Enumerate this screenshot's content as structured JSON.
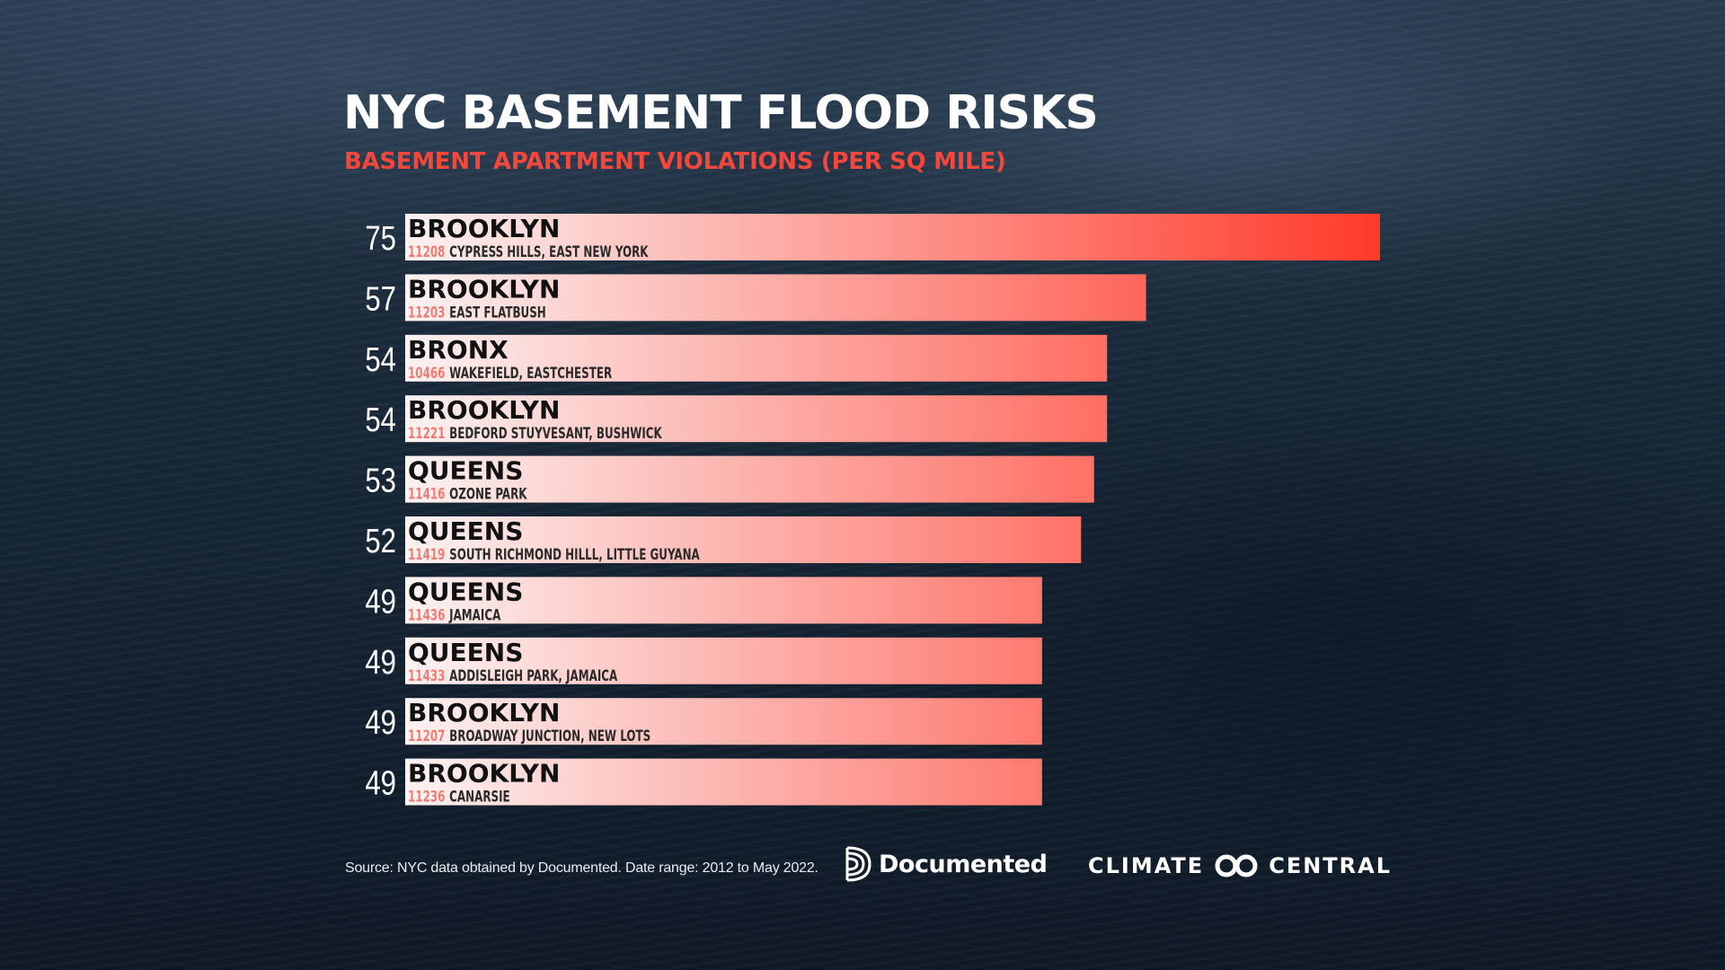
{
  "header": {
    "title": "NYC BASEMENT FLOOD RISKS",
    "subtitle": "BASEMENT APARTMENT VIOLATIONS (PER SQ MILE)"
  },
  "chart_data": {
    "type": "bar",
    "orientation": "horizontal",
    "title": "NYC BASEMENT FLOOD RISKS",
    "subtitle": "BASEMENT APARTMENT VIOLATIONS (PER SQ MILE)",
    "xlim": [
      0,
      75
    ],
    "grid": false,
    "legend": "none",
    "bars": [
      {
        "value": 75,
        "borough": "BROOKLYN",
        "zip": "11208",
        "neighborhood": "CYPRESS HILLS, EAST NEW YORK"
      },
      {
        "value": 57,
        "borough": "BROOKLYN",
        "zip": "11203",
        "neighborhood": "EAST FLATBUSH"
      },
      {
        "value": 54,
        "borough": "BRONX",
        "zip": "10466",
        "neighborhood": "WAKEFIELD, EASTCHESTER"
      },
      {
        "value": 54,
        "borough": "BROOKLYN",
        "zip": "11221",
        "neighborhood": "BEDFORD STUYVESANT, BUSHWICK"
      },
      {
        "value": 53,
        "borough": "QUEENS",
        "zip": "11416",
        "neighborhood": "OZONE PARK"
      },
      {
        "value": 52,
        "borough": "QUEENS",
        "zip": "11419",
        "neighborhood": "SOUTH RICHMOND HILLL, LITTLE GUYANA"
      },
      {
        "value": 49,
        "borough": "QUEENS",
        "zip": "11436",
        "neighborhood": "JAMAICA"
      },
      {
        "value": 49,
        "borough": "QUEENS",
        "zip": "11433",
        "neighborhood": "ADDISLEIGH PARK, JAMAICA"
      },
      {
        "value": 49,
        "borough": "BROOKLYN",
        "zip": "11207",
        "neighborhood": "BROADWAY JUNCTION, NEW LOTS"
      },
      {
        "value": 49,
        "borough": "BROOKLYN",
        "zip": "11236",
        "neighborhood": "CANARSIE"
      }
    ]
  },
  "colors": {
    "bar_start": "#fbf2f2",
    "bar_end": "#ff3a2a",
    "zip_text": "#f07b73",
    "accent": "#f2473a"
  },
  "footer": {
    "source": "Source: NYC data obtained by Documented. Date range: 2012 to May 2022.",
    "logo_documented": "Documented",
    "logo_climate": [
      "CLIMATE",
      "CENTRAL"
    ]
  }
}
